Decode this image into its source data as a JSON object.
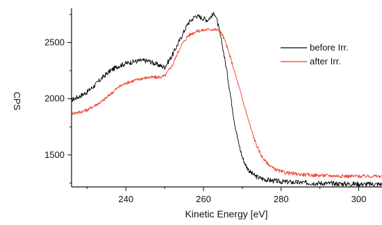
{
  "chart_data": {
    "type": "line",
    "xlabel": "Kinetic Energy [eV]",
    "ylabel": "CPS",
    "xlim": [
      226,
      306
    ],
    "ylim": [
      1215,
      2805
    ],
    "xticks": [
      "240",
      "260",
      "280",
      "300"
    ],
    "yticks": [
      "1500",
      "2000",
      "2500"
    ],
    "grid": false,
    "legend_placement": "top-right",
    "series": [
      {
        "name": "before Irr.",
        "color": "#000000",
        "x": [
          226,
          228,
          230,
          232,
          234,
          236,
          238,
          240,
          242,
          244,
          246,
          248,
          250,
          252,
          254,
          256,
          258,
          260,
          261,
          262,
          263,
          264,
          265,
          266,
          267,
          268,
          269,
          270,
          271,
          272,
          273,
          274,
          276,
          278,
          280,
          282,
          284,
          286,
          288,
          290,
          292,
          294,
          296,
          298,
          300,
          302,
          304,
          306
        ],
        "y": [
          1990,
          2020,
          2060,
          2120,
          2190,
          2250,
          2290,
          2315,
          2330,
          2340,
          2335,
          2305,
          2280,
          2390,
          2530,
          2670,
          2740,
          2715,
          2700,
          2735,
          2760,
          2620,
          2450,
          2250,
          2020,
          1790,
          1610,
          1480,
          1400,
          1350,
          1320,
          1300,
          1280,
          1270,
          1262,
          1258,
          1255,
          1252,
          1250,
          1248,
          1246,
          1244,
          1243,
          1242,
          1241,
          1240,
          1240,
          1240
        ]
      },
      {
        "name": "after Irr.",
        "color": "#ee3b24",
        "x": [
          226,
          228,
          230,
          232,
          234,
          236,
          238,
          240,
          242,
          244,
          246,
          248,
          250,
          252,
          254,
          256,
          258,
          260,
          262,
          264,
          265,
          266,
          267,
          268,
          269,
          270,
          271,
          272,
          273,
          274,
          275,
          276,
          278,
          280,
          282,
          284,
          286,
          288,
          290,
          292,
          294,
          296,
          298,
          300,
          302,
          304,
          306
        ],
        "y": [
          1870,
          1880,
          1900,
          1940,
          1980,
          2040,
          2100,
          2140,
          2160,
          2180,
          2190,
          2190,
          2200,
          2300,
          2460,
          2560,
          2600,
          2610,
          2620,
          2610,
          2560,
          2470,
          2360,
          2240,
          2120,
          2000,
          1880,
          1760,
          1650,
          1560,
          1490,
          1440,
          1380,
          1350,
          1338,
          1330,
          1324,
          1320,
          1318,
          1316,
          1314,
          1312,
          1310,
          1310,
          1310,
          1310,
          1310
        ]
      }
    ]
  }
}
